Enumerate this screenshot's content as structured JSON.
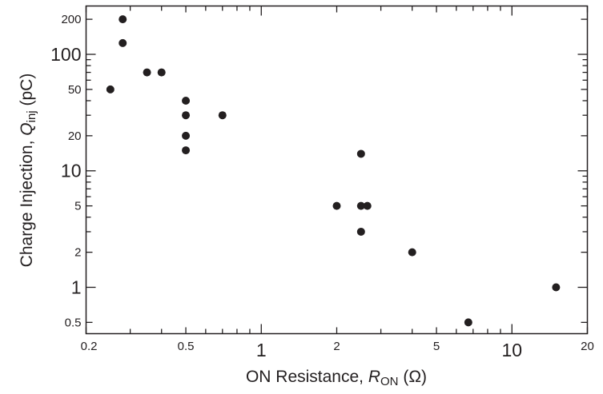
{
  "chart_data": {
    "type": "scatter",
    "x_scale": "log",
    "y_scale": "log",
    "xlim": [
      0.2,
      20
    ],
    "ylim": [
      0.4,
      260
    ],
    "grid": false,
    "legend": "none",
    "xlabel": {
      "main": "ON Resistance, ",
      "symbol": "R",
      "subscript": "ON",
      "unit": "(Ω)"
    },
    "ylabel": {
      "main": "Charge Injection, ",
      "symbol": "Q",
      "subscript": "inj",
      "unit": "(pC)"
    },
    "x_ticks": [
      {
        "value": 0.2,
        "label": "0.2",
        "major": false
      },
      {
        "value": 0.5,
        "label": "0.5",
        "major": false
      },
      {
        "value": 1,
        "label": "1",
        "major": true
      },
      {
        "value": 2,
        "label": "2",
        "major": false
      },
      {
        "value": 5,
        "label": "5",
        "major": false
      },
      {
        "value": 10,
        "label": "10",
        "major": true
      },
      {
        "value": 20,
        "label": "20",
        "major": false
      }
    ],
    "x_minor_ticks": [
      0.3,
      0.4,
      0.6,
      0.7,
      0.8,
      0.9,
      3,
      4,
      6,
      7,
      8,
      9
    ],
    "y_ticks": [
      {
        "value": 0.5,
        "label": "0.5",
        "major": false
      },
      {
        "value": 1,
        "label": "1",
        "major": true
      },
      {
        "value": 2,
        "label": "2",
        "major": false
      },
      {
        "value": 5,
        "label": "5",
        "major": false
      },
      {
        "value": 10,
        "label": "10",
        "major": true
      },
      {
        "value": 20,
        "label": "20",
        "major": false
      },
      {
        "value": 50,
        "label": "50",
        "major": false
      },
      {
        "value": 100,
        "label": "100",
        "major": true
      },
      {
        "value": 200,
        "label": "200",
        "major": false
      }
    ],
    "y_minor_ticks": [
      3,
      4,
      6,
      7,
      8,
      9,
      30,
      40,
      60,
      70,
      80,
      90
    ],
    "marker_color": "#231f20",
    "points": [
      {
        "x": 0.25,
        "y": 50
      },
      {
        "x": 0.28,
        "y": 200
      },
      {
        "x": 0.28,
        "y": 125
      },
      {
        "x": 0.35,
        "y": 70
      },
      {
        "x": 0.4,
        "y": 70
      },
      {
        "x": 0.5,
        "y": 40
      },
      {
        "x": 0.5,
        "y": 30
      },
      {
        "x": 0.5,
        "y": 20
      },
      {
        "x": 0.5,
        "y": 15
      },
      {
        "x": 0.7,
        "y": 30
      },
      {
        "x": 2,
        "y": 5
      },
      {
        "x": 2.5,
        "y": 14
      },
      {
        "x": 2.5,
        "y": 5
      },
      {
        "x": 2.65,
        "y": 5
      },
      {
        "x": 2.5,
        "y": 3
      },
      {
        "x": 4,
        "y": 2
      },
      {
        "x": 6.7,
        "y": 0.5
      },
      {
        "x": 15,
        "y": 1
      }
    ]
  }
}
